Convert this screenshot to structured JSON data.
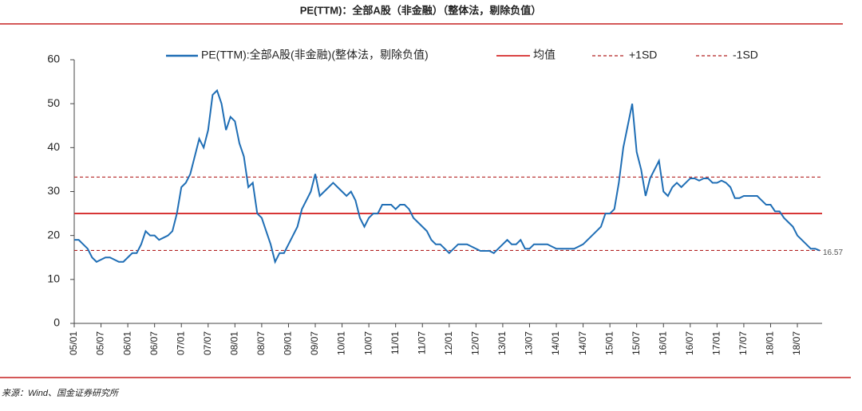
{
  "chart_data": {
    "type": "line",
    "title": "PE(TTM)：全部A股（非金融）（整体法，剔除负值）",
    "source": "来源：Wind、国金证券研究所",
    "categories": [
      "05/01",
      null,
      null,
      null,
      null,
      null,
      "05/07",
      null,
      null,
      null,
      null,
      null,
      "06/01",
      null,
      null,
      null,
      null,
      null,
      "06/07",
      null,
      null,
      null,
      null,
      null,
      "07/01",
      null,
      null,
      null,
      null,
      null,
      "07/07",
      null,
      null,
      null,
      null,
      null,
      "08/01",
      null,
      null,
      null,
      null,
      null,
      "08/07",
      null,
      null,
      null,
      null,
      null,
      "09/01",
      null,
      null,
      null,
      null,
      null,
      "09/07",
      null,
      null,
      null,
      null,
      null,
      "10/01",
      null,
      null,
      null,
      null,
      null,
      "10/07",
      null,
      null,
      null,
      null,
      null,
      "11/01",
      null,
      null,
      null,
      null,
      null,
      "11/07",
      null,
      null,
      null,
      null,
      null,
      "12/01",
      null,
      null,
      null,
      null,
      null,
      "12/07",
      null,
      null,
      null,
      null,
      null,
      "13/01",
      null,
      null,
      null,
      null,
      null,
      "13/07",
      null,
      null,
      null,
      null,
      null,
      "14/01",
      null,
      null,
      null,
      null,
      null,
      "14/07",
      null,
      null,
      null,
      null,
      null,
      "15/01",
      null,
      null,
      null,
      null,
      null,
      "15/07",
      null,
      null,
      null,
      null,
      null,
      "16/01",
      null,
      null,
      null,
      null,
      null,
      "16/07",
      null,
      null,
      null,
      null,
      null,
      "17/01",
      null,
      null,
      null,
      null,
      null,
      "17/07",
      null,
      null,
      null,
      null,
      null,
      "18/01",
      null,
      null,
      null,
      null,
      null,
      "18/07",
      null,
      null,
      null,
      null,
      null
    ],
    "series": [
      {
        "name": "PE(TTM):全部A股(非金融)(整体法，剔除负值)",
        "color": "#1f6eb5",
        "values": [
          19,
          19,
          18,
          17,
          15,
          14,
          14.5,
          15,
          15,
          14.5,
          14,
          14,
          15,
          16,
          16,
          18,
          21,
          20,
          20,
          19,
          19.5,
          20,
          21,
          25,
          31,
          32,
          34,
          38,
          42,
          40,
          44,
          52,
          53,
          50,
          44,
          47,
          46,
          41,
          38,
          31,
          32,
          25,
          24,
          21,
          18,
          14,
          16,
          16,
          18,
          20,
          22,
          26,
          28,
          30,
          34,
          29,
          30,
          31,
          32,
          31,
          30,
          29,
          30,
          28,
          24,
          22,
          24,
          25,
          25,
          27,
          27,
          27,
          26,
          27,
          27,
          26,
          24,
          23,
          22,
          21,
          19,
          18,
          18,
          17,
          16,
          17,
          18,
          18,
          18,
          17.5,
          17,
          16.5,
          16.5,
          16.5,
          16,
          17,
          18,
          19,
          18,
          18,
          19,
          17,
          17,
          18,
          18,
          18,
          18,
          17.5,
          17,
          17,
          17,
          17,
          17,
          17.5,
          18,
          19,
          20,
          21,
          22,
          25,
          25,
          26,
          32,
          40,
          45,
          50,
          39,
          35,
          29,
          33,
          35,
          37,
          30,
          29,
          31,
          32,
          31,
          32,
          33,
          33,
          32.5,
          33,
          33,
          32,
          32,
          32.5,
          32,
          31,
          28.5,
          28.5,
          29,
          29,
          29,
          29,
          28,
          27,
          27,
          25.5,
          25.5,
          24,
          23,
          22,
          20,
          19,
          18,
          17,
          17,
          16.57
        ]
      }
    ],
    "reference_lines": [
      {
        "name": "均值",
        "value": 25,
        "color": "#d42a2a",
        "dashed": false
      },
      {
        "name": "+1SD",
        "value": 33.3,
        "color": "#b22222",
        "dashed": true
      },
      {
        "name": "-1SD",
        "value": 16.6,
        "color": "#b22222",
        "dashed": true
      }
    ],
    "ylim": [
      0,
      60
    ],
    "yticks": [
      0,
      10,
      20,
      30,
      40,
      50,
      60
    ]
  }
}
